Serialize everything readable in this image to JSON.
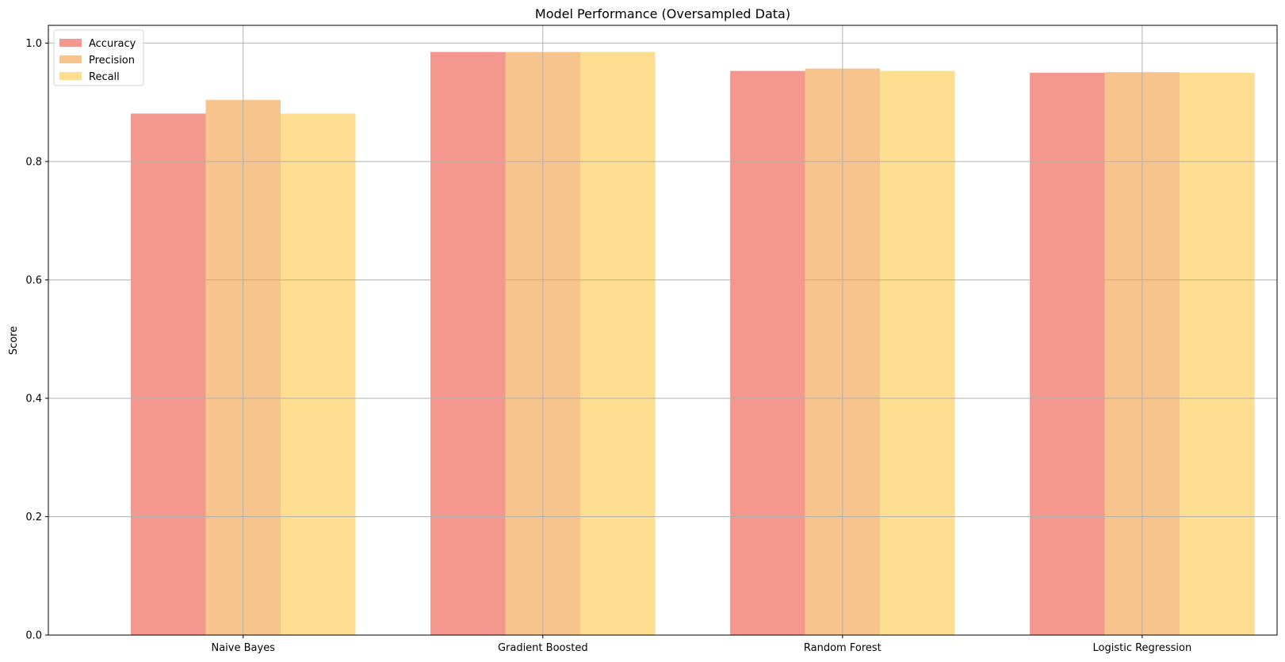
{
  "chart_data": {
    "type": "bar",
    "title": "Model Performance (Oversampled Data)",
    "xlabel": "",
    "ylabel": "Score",
    "categories": [
      "Naive Bayes",
      "Gradient Boosted",
      "Random Forest",
      "Logistic Regression"
    ],
    "series": [
      {
        "name": "Accuracy",
        "color": "#f4978e",
        "values": [
          0.881,
          0.985,
          0.953,
          0.95
        ]
      },
      {
        "name": "Precision",
        "color": "#f8c48e",
        "values": [
          0.904,
          0.985,
          0.957,
          0.951
        ]
      },
      {
        "name": "Recall",
        "color": "#fddd8f",
        "values": [
          0.881,
          0.985,
          0.953,
          0.95
        ]
      }
    ],
    "ylim": [
      0,
      1.03
    ],
    "yticks": [
      0.0,
      0.2,
      0.4,
      0.6,
      0.8,
      1.0
    ],
    "ytick_labels": [
      "0.0",
      "0.2",
      "0.4",
      "0.6",
      "0.8",
      "1.0"
    ],
    "grid": true,
    "legend_position": "top-left"
  }
}
